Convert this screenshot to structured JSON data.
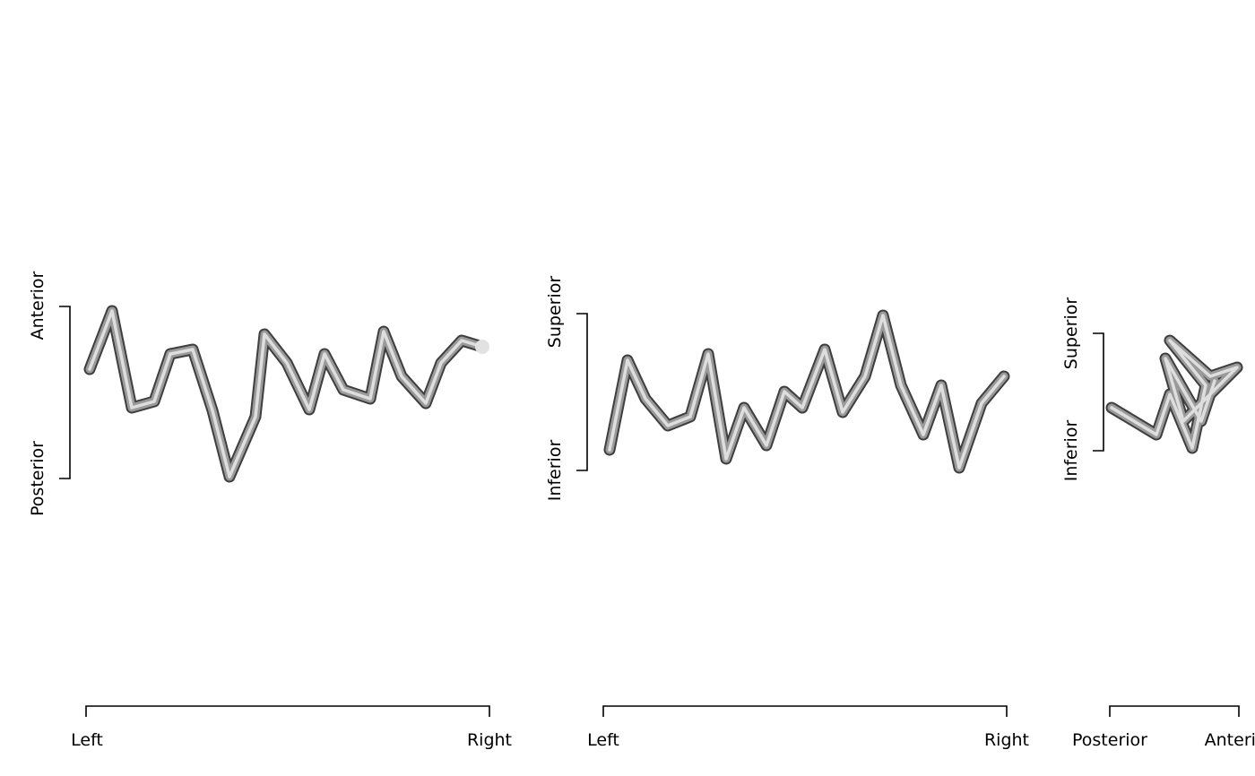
{
  "panels": [
    {
      "x_axis": {
        "start": "Left",
        "end": "Right"
      },
      "y_axis": {
        "bottom": "Posterior",
        "top": "Anterior"
      }
    },
    {
      "x_axis": {
        "start": "Left",
        "end": "Right"
      },
      "y_axis": {
        "bottom": "Inferior",
        "top": "Superior"
      }
    },
    {
      "x_axis": {
        "start": "Posterior",
        "end": "Anterior"
      },
      "y_axis": {
        "bottom": "Inferior",
        "top": "Superior"
      }
    }
  ]
}
